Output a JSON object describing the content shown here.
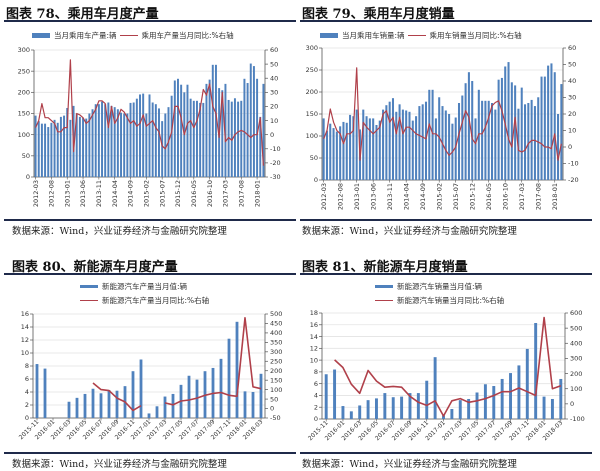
{
  "colors": {
    "bar": "#4f81bd",
    "line": "#b0404a",
    "grid": "#e3e3e3",
    "rule": "#1f2a4a"
  },
  "panels": [
    {
      "title": "图表 78、乘用车月度产量",
      "source": "数据来源：Wind，兴业证券经济与金融研究院整理"
    },
    {
      "title": "图表 79、乘用车月度销量",
      "source": "数据来源：Wind，兴业证券经济与金融研究院整理"
    },
    {
      "title": "图表 80、新能源车月度产量",
      "source": "数据来源：Wind，兴业证券经济与金融研究院整理"
    },
    {
      "title": "图表 81、新能源车月度销量",
      "source": "数据来源：Wind，兴业证券经济与金融研究院整理"
    }
  ],
  "chart_data": [
    {
      "type": "bar+line",
      "title": "图表 78、乘用车月度产量",
      "legend": [
        "当月乘用车产量:辆",
        "乘用车产量当月同比:%右轴"
      ],
      "legend_placement": "top",
      "ylim_left": [
        0,
        300
      ],
      "ylim_right": [
        -30,
        60
      ],
      "yticks_left": [
        "0",
        "50",
        "100",
        "150",
        "200",
        "250",
        "300"
      ],
      "yticks_right": [
        "-30",
        "-20",
        "-10",
        "0",
        "10",
        "20",
        "30",
        "40",
        "50",
        "60"
      ],
      "xtick_labels": [
        "2012-03",
        "2012-08",
        "2013-01",
        "2013-06",
        "2013-11",
        "2014-04",
        "2014-09",
        "2015-02",
        "2015-07",
        "2015-12",
        "2016-05",
        "2016-10",
        "2017-03",
        "2017-08",
        "2018-01"
      ],
      "x_start": "2012-03",
      "series": [
        {
          "name": "当月乘用车产量:辆",
          "axis": "left",
          "values": [
            145,
            132,
            126,
            126,
            118,
            128,
            135,
            128,
            142,
            145,
            163,
            135,
            168,
            150,
            142,
            140,
            138,
            150,
            160,
            172,
            172,
            178,
            172,
            176,
            168,
            165,
            160,
            152,
            150,
            150,
            175,
            176,
            185,
            195,
            197,
            150,
            195,
            176,
            172,
            162,
            132,
            150,
            165,
            192,
            228,
            232,
            218,
            200,
            218,
            185,
            180,
            180,
            175,
            175,
            220,
            230,
            265,
            265,
            210,
            205,
            220,
            182,
            178,
            186,
            178,
            180,
            232,
            222,
            268,
            262,
            232,
            142,
            220
          ]
        },
        {
          "name": "乘用车产量当月同比:%右轴",
          "axis": "right",
          "values": [
            5,
            10,
            22,
            12,
            12,
            10,
            8,
            2,
            2,
            5,
            5,
            53,
            -12,
            15,
            14,
            12,
            8,
            10,
            14,
            18,
            24,
            24,
            22,
            5,
            20,
            8,
            12,
            18,
            16,
            12,
            8,
            10,
            6,
            8,
            14,
            6,
            8,
            10,
            5,
            2,
            -8,
            -10,
            -5,
            2,
            20,
            20,
            12,
            0,
            8,
            10,
            5,
            10,
            18,
            32,
            28,
            36,
            20,
            15,
            -2,
            30,
            -5,
            -2,
            -4,
            0,
            2,
            3,
            2,
            0,
            -2,
            0,
            0,
            12,
            -22
          ]
        }
      ]
    },
    {
      "type": "bar+line",
      "title": "图表 79、乘用车月度销量",
      "legend": [
        "当月乘用车销量:辆",
        "乘用车销量当月同比:%右轴"
      ],
      "legend_placement": "top",
      "ylim_left": [
        0,
        300
      ],
      "ylim_right": [
        -20,
        60
      ],
      "yticks_left": [
        "0",
        "50",
        "100",
        "150",
        "200",
        "250",
        "300"
      ],
      "yticks_right": [
        "-20",
        "-10",
        "0",
        "10",
        "20",
        "30",
        "40",
        "50",
        "60"
      ],
      "xtick_labels": [
        "2012-03",
        "2012-08",
        "2013-01",
        "2013-06",
        "2013-11",
        "2014-04",
        "2014-09",
        "2015-02",
        "2015-07",
        "2015-12",
        "2016-05",
        "2016-10",
        "2017-03",
        "2017-08",
        "2018-01"
      ],
      "x_start": "2012-03",
      "series": [
        {
          "name": "当月乘用车销量:辆",
          "axis": "left",
          "values": [
            140,
            112,
            128,
            118,
            110,
            122,
            132,
            130,
            148,
            145,
            160,
            115,
            160,
            145,
            140,
            140,
            125,
            135,
            160,
            170,
            178,
            186,
            155,
            172,
            160,
            158,
            155,
            135,
            145,
            168,
            172,
            178,
            205,
            205,
            140,
            188,
            168,
            158,
            150,
            128,
            142,
            175,
            192,
            220,
            245,
            225,
            140,
            205,
            180,
            180,
            180,
            175,
            160,
            228,
            232,
            258,
            268,
            222,
            215,
            162,
            210,
            172,
            175,
            182,
            168,
            188,
            235,
            235,
            260,
            265,
            245,
            150,
            218
          ]
        },
        {
          "name": "乘用车销量当月同比:%右轴",
          "axis": "right",
          "values": [
            5,
            10,
            23,
            15,
            10,
            8,
            2,
            8,
            8,
            10,
            48,
            -8,
            15,
            12,
            10,
            8,
            10,
            12,
            20,
            22,
            15,
            18,
            8,
            18,
            8,
            12,
            12,
            10,
            8,
            7,
            6,
            5,
            14,
            8,
            8,
            6,
            2,
            -2,
            -5,
            -3,
            0,
            8,
            15,
            22,
            18,
            5,
            2,
            8,
            8,
            12,
            18,
            25,
            27,
            28,
            22,
            14,
            5,
            0,
            18,
            -2,
            -3,
            -2,
            2,
            4,
            4,
            3,
            2,
            0,
            0,
            -1,
            8,
            -8,
            2
          ]
        }
      ]
    },
    {
      "type": "bar+line",
      "title": "图表 80、新能源车月度产量",
      "legend": [
        "新能源汽车产量当月值:辆",
        "新能源汽车产量当月同比:%右轴"
      ],
      "legend_placement": "top",
      "ylim_left": [
        0,
        16
      ],
      "ylim_right": [
        -50,
        500
      ],
      "yticks_left": [
        "0",
        "2",
        "4",
        "6",
        "8",
        "10",
        "12",
        "14",
        "16"
      ],
      "yticks_right": [
        "-50",
        "0",
        "50",
        "100",
        "150",
        "200",
        "250",
        "300",
        "350",
        "400",
        "450",
        "500"
      ],
      "xtick_labels": [
        "2015-11",
        "2016-01",
        "2016-03",
        "2016-05",
        "2016-07",
        "2016-09",
        "2016-11",
        "2017-01",
        "2017-03",
        "2017-05",
        "2017-07",
        "2017-09",
        "2017-11",
        "2018-01",
        "2018-03"
      ],
      "x_start": "2015-11",
      "series": [
        {
          "name": "新能源汽车产量当月值:辆",
          "axis": "left",
          "values": [
            8.3,
            7.6,
            null,
            null,
            2.5,
            3.1,
            3.7,
            4.5,
            3.8,
            4.3,
            4.2,
            4.9,
            7.2,
            9.0,
            0.7,
            1.8,
            3.3,
            3.7,
            5.1,
            6.5,
            5.9,
            7.2,
            7.7,
            9.1,
            12.2,
            14.8,
            4.1,
            4.0,
            6.8
          ]
        },
        {
          "name": "新能源汽车产量当月同比:%右轴",
          "axis": "right",
          "values": [
            null,
            null,
            null,
            null,
            null,
            null,
            null,
            135,
            100,
            95,
            55,
            35,
            -10,
            15,
            null,
            null,
            30,
            20,
            40,
            45,
            55,
            70,
            80,
            85,
            70,
            65,
            480,
            115,
            105
          ]
        }
      ]
    },
    {
      "type": "bar+line",
      "title": "图表 81、新能源车月度销量",
      "legend": [
        "新能源汽车销量当月值:辆",
        "新能源汽车销量当月同比:%右轴"
      ],
      "legend_placement": "top",
      "ylim_left": [
        0,
        18
      ],
      "ylim_right": [
        -100,
        600
      ],
      "yticks_left": [
        "0",
        "2",
        "4",
        "6",
        "8",
        "10",
        "12",
        "14",
        "16",
        "18"
      ],
      "yticks_right": [
        "-100",
        "0",
        "100",
        "200",
        "300",
        "400",
        "500",
        "600"
      ],
      "xtick_labels": [
        "2015-11",
        "2016-01",
        "2016-03",
        "2016-05",
        "2016-07",
        "2016-09",
        "2016-11",
        "2017-01",
        "2017-03",
        "2017-05",
        "2017-07",
        "2017-09",
        "2017-11",
        "2018-01",
        "2018-03"
      ],
      "x_start": "2015-11",
      "series": [
        {
          "name": "新能源汽车销量当月值:辆",
          "axis": "left",
          "values": [
            7.6,
            8.4,
            2.2,
            1.3,
            2.3,
            3.2,
            3.5,
            4.4,
            3.7,
            3.8,
            4.4,
            4.4,
            6.5,
            10.5,
            0.6,
            1.7,
            3.2,
            3.4,
            4.5,
            5.9,
            5.6,
            6.8,
            7.8,
            9.1,
            11.9,
            16.3,
            3.8,
            3.4,
            6.8
          ]
        },
        {
          "name": "新能源汽车销量当月同比:%右轴",
          "axis": "right",
          "values": [
            null,
            290,
            240,
            130,
            70,
            220,
            150,
            110,
            115,
            110,
            50,
            10,
            -10,
            20,
            -80,
            20,
            35,
            10,
            20,
            35,
            55,
            80,
            80,
            105,
            80,
            55,
            570,
            100,
            120
          ]
        }
      ]
    }
  ]
}
